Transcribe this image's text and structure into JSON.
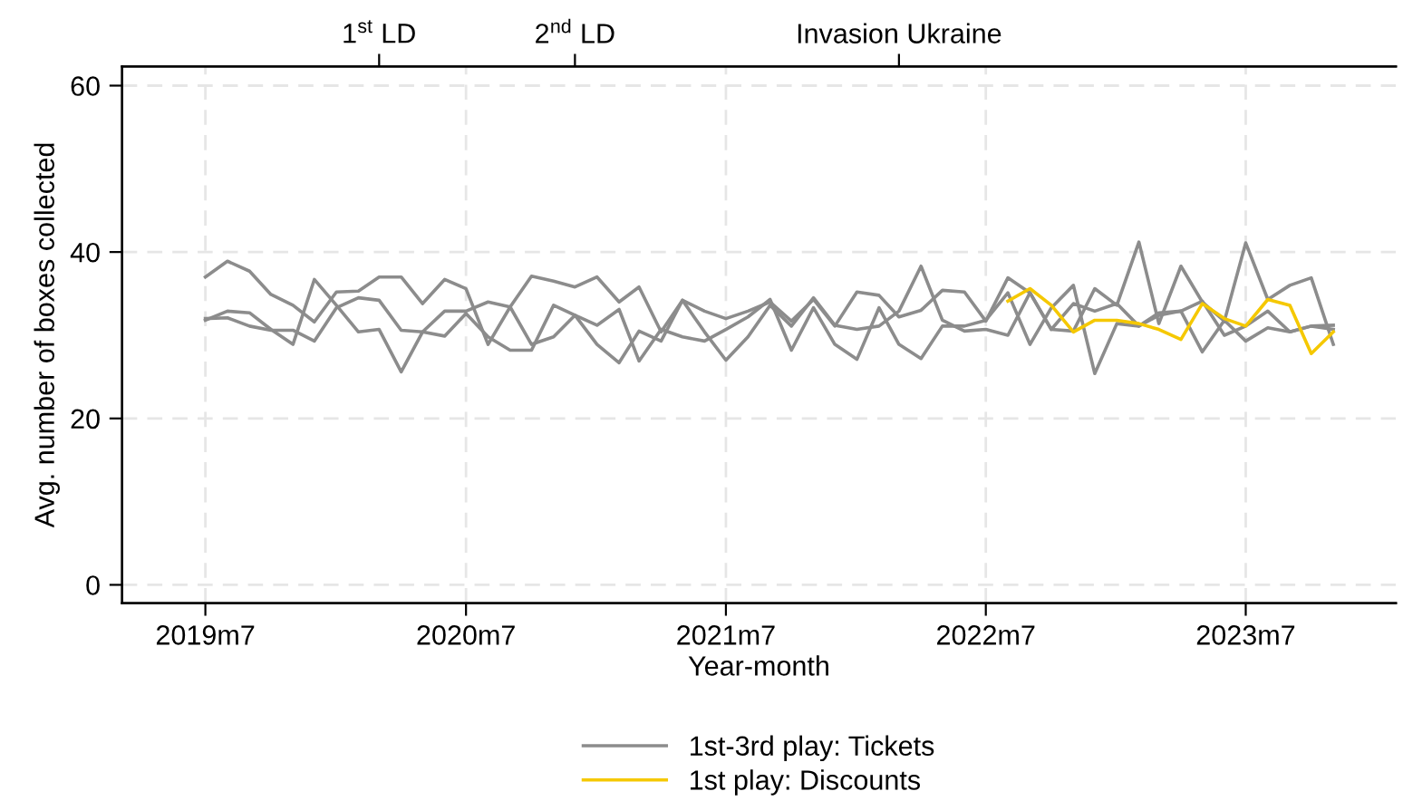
{
  "chart_data": {
    "type": "line",
    "xlabel": "Year-month",
    "ylabel": "Avg. number of boxes collected",
    "x": [
      "2019-07",
      "2019-08",
      "2019-09",
      "2019-10",
      "2019-11",
      "2019-12",
      "2020-01",
      "2020-02",
      "2020-03",
      "2020-04",
      "2020-05",
      "2020-06",
      "2020-07",
      "2020-08",
      "2020-09",
      "2020-10",
      "2020-11",
      "2020-12",
      "2021-01",
      "2021-02",
      "2021-03",
      "2021-04",
      "2021-05",
      "2021-06",
      "2021-07",
      "2021-08",
      "2021-09",
      "2021-10",
      "2021-11",
      "2021-12",
      "2022-01",
      "2022-02",
      "2022-03",
      "2022-04",
      "2022-05",
      "2022-06",
      "2022-07",
      "2022-08",
      "2022-09",
      "2022-10",
      "2022-11",
      "2022-12",
      "2023-01",
      "2023-02",
      "2023-03",
      "2023-04",
      "2023-05",
      "2023-06",
      "2023-07",
      "2023-08",
      "2023-09",
      "2023-10",
      "2023-11"
    ],
    "series": [
      {
        "name": "1st-3rd play: Tickets",
        "color": "#8c8c8c",
        "values": [
          37.0,
          38.9,
          37.7,
          34.9,
          33.6,
          31.6,
          35.2,
          35.3,
          37.0,
          37.0,
          33.8,
          36.7,
          35.6,
          28.9,
          33.4,
          37.1,
          36.5,
          35.8,
          37.0,
          34.0,
          35.8,
          30.4,
          34.2,
          32.9,
          32.0,
          32.9,
          34.0,
          31.7,
          34.3,
          31.1,
          35.2,
          34.8,
          32.2,
          33.0,
          35.4,
          35.2,
          31.7,
          36.9,
          35.1,
          30.7,
          30.5,
          35.6,
          33.6,
          41.2,
          31.4,
          38.3,
          34.0,
          31.7,
          41.1,
          34.3,
          36.0,
          36.9,
          28.9
        ]
      },
      {
        "color": "#8c8c8c",
        "values": [
          31.8,
          32.9,
          32.7,
          30.7,
          28.9,
          36.7,
          33.6,
          30.4,
          30.7,
          25.6,
          30.4,
          32.9,
          32.9,
          34.0,
          33.4,
          28.9,
          29.8,
          32.4,
          31.2,
          33.1,
          26.9,
          30.7,
          29.8,
          29.3,
          30.7,
          32.2,
          34.3,
          28.2,
          33.3,
          28.9,
          27.1,
          33.3,
          28.9,
          27.2,
          31.1,
          31.1,
          31.8,
          35.1,
          28.9,
          33.3,
          36.0,
          25.4,
          31.4,
          31.1,
          32.7,
          32.9,
          28.0,
          31.8,
          29.3,
          30.9,
          30.4,
          31.1,
          31.2
        ]
      },
      {
        "color": "#8c8c8c",
        "values": [
          32.0,
          32.1,
          31.1,
          30.6,
          30.6,
          29.3,
          33.3,
          34.5,
          34.2,
          30.6,
          30.4,
          29.9,
          32.6,
          29.8,
          28.2,
          28.2,
          33.6,
          32.4,
          28.9,
          26.7,
          30.5,
          29.3,
          34.2,
          30.4,
          27.0,
          29.8,
          33.6,
          31.1,
          34.5,
          31.2,
          30.7,
          31.1,
          32.9,
          38.3,
          31.8,
          30.5,
          30.7,
          30.0,
          35.1,
          30.7,
          33.8,
          32.9,
          33.8,
          31.1,
          32.4,
          32.9,
          34.1,
          30.0,
          31.1,
          32.9,
          30.4,
          31.1,
          30.7
        ]
      },
      {
        "name": "1st play: Discounts",
        "color": "#f5c800",
        "x": [
          "2022-08",
          "2022-09",
          "2022-10",
          "2022-11",
          "2022-12",
          "2023-01",
          "2023-02",
          "2023-03",
          "2023-04",
          "2023-05",
          "2023-06",
          "2023-07",
          "2023-08",
          "2023-09",
          "2023-10",
          "2023-11"
        ],
        "values": [
          34.1,
          35.6,
          33.6,
          30.4,
          31.8,
          31.8,
          31.4,
          30.7,
          29.5,
          33.8,
          32.0,
          31.1,
          34.3,
          33.6,
          27.8,
          30.4
        ]
      }
    ],
    "xlim": [
      "2019-03-06",
      "2024-01-28"
    ],
    "xticks": [
      {
        "value": "2019-07",
        "label": "2019m7"
      },
      {
        "value": "2020-07",
        "label": "2020m7"
      },
      {
        "value": "2021-07",
        "label": "2021m7"
      },
      {
        "value": "2022-07",
        "label": "2022m7"
      },
      {
        "value": "2023-07",
        "label": "2023m7"
      }
    ],
    "x2lim": [
      "2019-03-06",
      "2024-01-28"
    ],
    "x2ticks": [
      {
        "value": "2020-03",
        "label": "1$^{st}$ LD"
      },
      {
        "value": "2020-12",
        "label": "2$^{nd}$ LD"
      },
      {
        "value": "2022-03",
        "label": "Invasion Ukraine"
      }
    ],
    "ylim": [
      -2.2,
      62.3
    ],
    "yticks": [
      0,
      20,
      40,
      60
    ],
    "grid": true,
    "legend": "bottom",
    "line_style": "solid",
    "marker": "none"
  }
}
